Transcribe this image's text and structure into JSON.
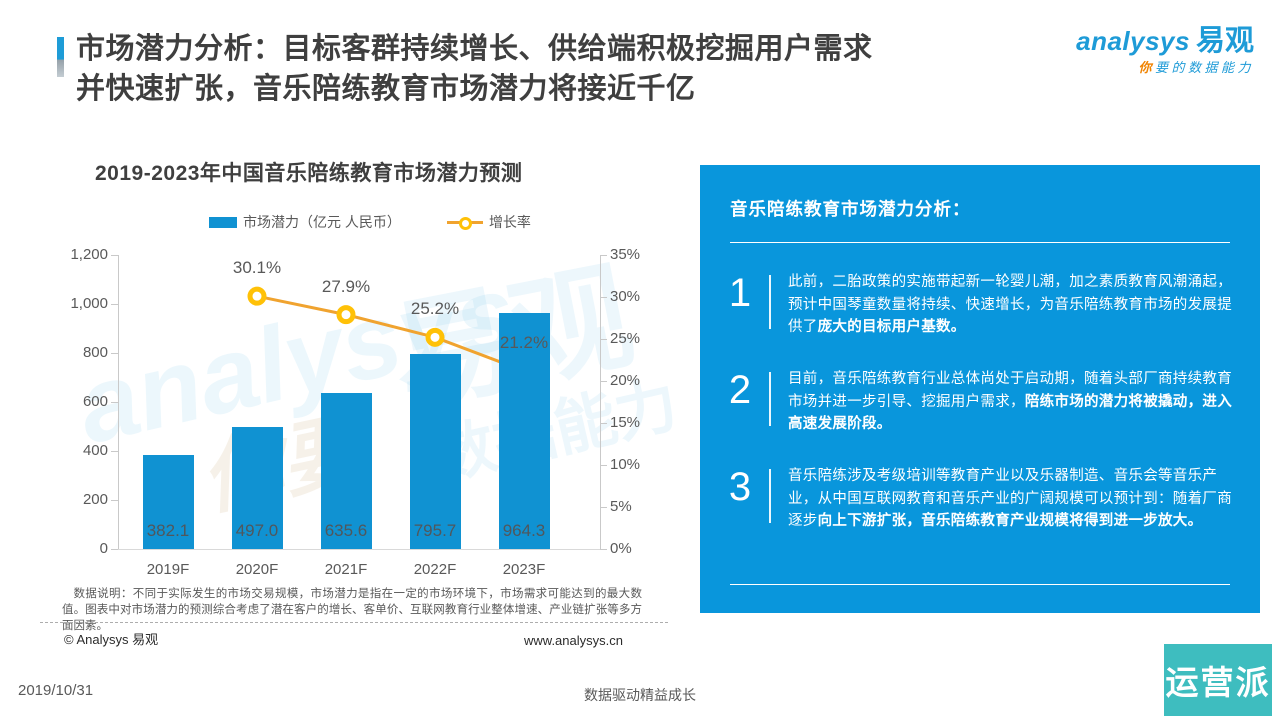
{
  "header": {
    "title_line1": "市场潜力分析：目标客群持续增长、供给端积极挖掘用户需求",
    "title_line2": "并快速扩张，音乐陪练教育市场潜力将接近千亿"
  },
  "logo": {
    "brand_en": "analysys",
    "brand_cn": "易观",
    "tagline_first": "你",
    "tagline_rest": "要的数据能力"
  },
  "chart": {
    "title": "2019-2023年中国音乐陪练教育市场潜力预测",
    "legend": [
      {
        "label": "市场潜力（亿元 人民币）"
      },
      {
        "label": "增长率"
      }
    ],
    "note": "数据说明：不同于实际发生的市场交易规模，市场潜力是指在一定的市场环境下，市场需求可能达到的最大数值。图表中对市场潜力的预测综合考虑了潜在客户的增长、客单价、互联网教育行业整体增速、产业链扩张等多方面因素。"
  },
  "chart_data": {
    "type": "bar",
    "title": "2019-2023年中国音乐陪练教育市场潜力预测",
    "categories": [
      "2019F",
      "2020F",
      "2021F",
      "2022F",
      "2023F"
    ],
    "series": [
      {
        "name": "市场潜力（亿元 人民币）",
        "type": "bar",
        "values": [
          382.1,
          497.0,
          635.6,
          795.7,
          964.3
        ],
        "color": "#1092d2"
      },
      {
        "name": "增长率",
        "type": "line",
        "values": [
          null,
          30.1,
          27.9,
          25.2,
          21.2
        ],
        "unit": "%",
        "color": "#f0a32f",
        "marker_color": "#ffc107"
      }
    ],
    "left_axis": {
      "ticks": [
        "1,200",
        "1,000",
        "800",
        "600",
        "400",
        "200",
        "0"
      ],
      "min": 0,
      "max": 1200
    },
    "right_axis": {
      "ticks": [
        "35%",
        "30%",
        "25%",
        "20%",
        "15%",
        "10%",
        "5%",
        "0%"
      ],
      "min": 0,
      "max": 35
    },
    "grid": false,
    "legend_position": "top"
  },
  "watermark": {
    "w1": "analysys",
    "w2": "易观",
    "w3": "你要",
    "w4": "数据能力"
  },
  "panel": {
    "title": "音乐陪练教育市场潜力分析：",
    "items": [
      {
        "num": "1",
        "text_normal": "此前，二胎政策的实施带起新一轮婴儿潮，加之素质教育风潮涌起，预计中国琴童数量将持续、快速增长，为音乐陪练教育市场的发展提供了",
        "text_bold": "庞大的目标用户基数。"
      },
      {
        "num": "2",
        "text_normal": "目前，音乐陪练教育行业总体尚处于启动期，随着头部厂商持续教育市场并进一步引导、挖掘用户需求，",
        "text_bold": "陪练市场的潜力将被撬动，进入高速发展阶段。"
      },
      {
        "num": "3",
        "text_normal": "音乐陪练涉及考级培训等教育产业以及乐器制造、音乐会等音乐产业，从中国互联网教育和音乐产业的广阔规模可以预计到：随着厂商逐步",
        "text_bold": "向上下游扩张，音乐陪练教育产业规模将得到进一步放大。"
      }
    ]
  },
  "footer": {
    "copyright": "© Analysys 易观",
    "website": "www.analysys.cn",
    "date": "2019/10/31",
    "slogan": "数据驱动精益成长",
    "badge": "运营派"
  },
  "colors": {
    "bar_blue": "#1092d2",
    "line_orange": "#f0a32f",
    "marker_yellow": "#ffc107",
    "panel_blue": "#0996dc",
    "brand_blue": "#1e9bd7",
    "tagline_orange": "#f08300",
    "badge_teal": "#3ebdbf",
    "title_gray": "#3f3f3f",
    "axis_gray": "#595959"
  }
}
